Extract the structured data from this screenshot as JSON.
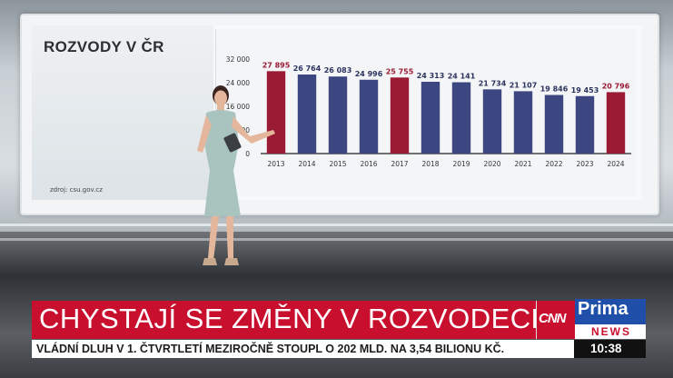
{
  "chart_data": {
    "type": "bar",
    "title": "ROZVODY V ČR",
    "source": "zdroj: csu.gov.cz",
    "categories": [
      "2013",
      "2014",
      "2015",
      "2016",
      "2017",
      "2018",
      "2019",
      "2020",
      "2021",
      "2022",
      "2023",
      "2024"
    ],
    "values": [
      27895,
      26764,
      26083,
      24996,
      25755,
      24313,
      24141,
      21734,
      21107,
      19846,
      19453,
      20796
    ],
    "value_labels": [
      "27 895",
      "26 764",
      "26 083",
      "24 996",
      "25 755",
      "24 313",
      "24 141",
      "21 734",
      "21 107",
      "19 846",
      "19 453",
      "20 796"
    ],
    "highlighted": [
      true,
      false,
      false,
      false,
      true,
      false,
      false,
      false,
      false,
      false,
      false,
      true
    ],
    "yticks": [
      0,
      8000,
      16000,
      24000,
      32000
    ],
    "ytick_labels": [
      "0",
      "8 000",
      "16 000",
      "24 000",
      "32 000"
    ],
    "ylim": [
      0,
      32000
    ],
    "colors": {
      "highlight": "#9b1b35",
      "normal": "#3c4680"
    }
  },
  "lower_third": {
    "headline": "CHYSTAJÍ SE ZMĚNY V ROZVODECH",
    "ticker": "VLÁDNÍ DLUH V 1. ČTVRTLETÍ MEZIROČNĚ STOUPL O 202 MLD. NA 3,54 BILIONU KČ.",
    "time": "10:38"
  },
  "branding": {
    "cnn": "CNN",
    "prima": "Prima",
    "news": "NEWS"
  }
}
